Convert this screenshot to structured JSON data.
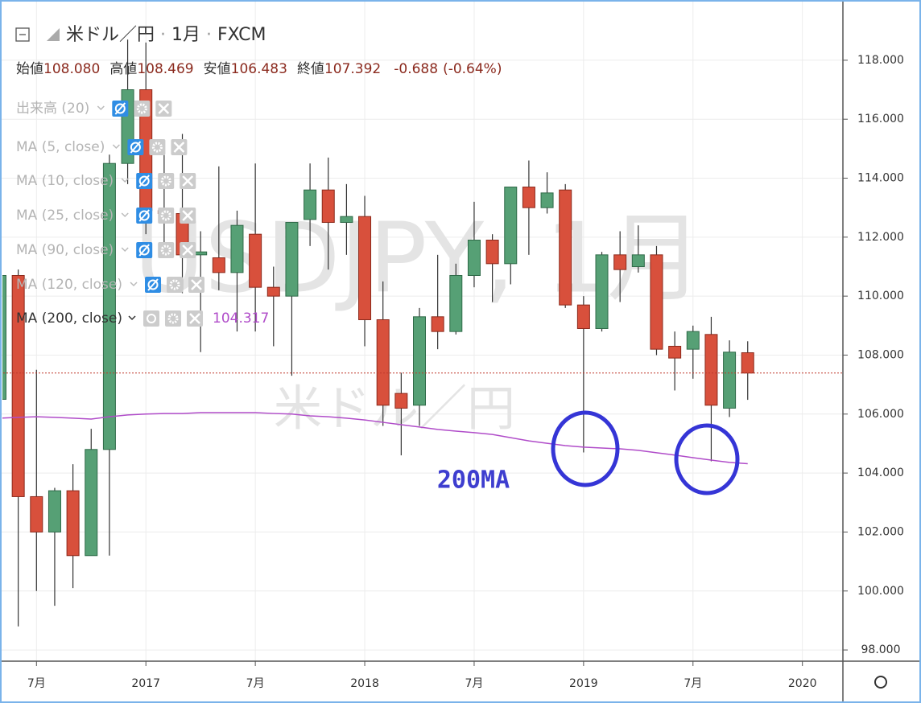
{
  "chart_data": {
    "type": "candlestick",
    "symbol": "米ドル／円",
    "interval": "1月",
    "exchange": "FXCM",
    "ohlc_legend": [
      {
        "label": "始値",
        "value": "108.080"
      },
      {
        "label": "高値",
        "value": "108.469"
      },
      {
        "label": "安値",
        "value": "106.483"
      },
      {
        "label": "終値",
        "value": "107.392"
      }
    ],
    "change": "-0.688",
    "change_pct": "(-0.64%)",
    "indicators": [
      "出来高 (20)",
      "MA (5, close)",
      "MA (10, close)",
      "MA (25, close)",
      "MA (90, close)",
      "MA (120, close)"
    ],
    "watermark": "USDJPY, 1月",
    "watermark_sub": "米ドル／円",
    "annotation": "200MA",
    "up_color": "#56a075",
    "down_color": "#d8503c",
    "x": [
      "2016-05",
      "2016-06",
      "2016-07",
      "2016-08",
      "2016-09",
      "2016-10",
      "2016-11",
      "2016-12",
      "2017-01",
      "2017-02",
      "2017-03",
      "2017-04",
      "2017-05",
      "2017-06",
      "2017-07",
      "2017-08",
      "2017-09",
      "2017-10",
      "2017-11",
      "2017-12",
      "2018-01",
      "2018-02",
      "2018-03",
      "2018-04",
      "2018-05",
      "2018-06",
      "2018-07",
      "2018-08",
      "2018-09",
      "2018-10",
      "2018-11",
      "2018-12",
      "2019-01",
      "2019-02",
      "2019-03",
      "2019-04",
      "2019-05",
      "2019-06",
      "2019-07",
      "2019-08",
      "2019-09",
      "2019-10"
    ],
    "open": [
      106.5,
      110.7,
      103.2,
      102.0,
      103.4,
      101.2,
      104.8,
      114.5,
      117.0,
      112.9,
      112.8,
      111.4,
      111.3,
      110.8,
      112.1,
      110.3,
      110.0,
      112.6,
      113.6,
      112.5,
      112.7,
      109.2,
      106.7,
      106.3,
      109.3,
      108.8,
      110.7,
      111.9,
      111.1,
      113.7,
      113.0,
      113.6,
      109.7,
      108.9,
      111.4,
      111.0,
      111.4,
      108.3,
      108.2,
      108.7,
      106.2,
      108.08
    ],
    "high": [
      111.4,
      110.9,
      107.5,
      103.5,
      104.3,
      105.5,
      114.8,
      118.7,
      118.6,
      115.0,
      115.5,
      112.2,
      114.4,
      112.9,
      114.5,
      111.0,
      112.5,
      114.5,
      114.7,
      113.8,
      113.4,
      110.5,
      107.4,
      109.6,
      111.4,
      111.1,
      113.2,
      112.1,
      113.7,
      114.6,
      114.2,
      113.8,
      110.0,
      111.5,
      112.2,
      112.4,
      111.7,
      108.8,
      109.0,
      109.3,
      108.5,
      108.469
    ],
    "low": [
      105.5,
      98.8,
      100.0,
      99.5,
      100.1,
      101.2,
      101.2,
      113.8,
      112.1,
      111.6,
      110.1,
      108.1,
      110.2,
      108.8,
      108.8,
      108.3,
      107.3,
      111.7,
      110.9,
      111.4,
      108.3,
      105.6,
      104.6,
      105.6,
      108.2,
      108.7,
      110.3,
      109.8,
      110.4,
      111.4,
      112.8,
      109.6,
      104.7,
      108.8,
      109.8,
      110.8,
      108.0,
      106.8,
      107.2,
      104.4,
      105.9,
      106.483
    ],
    "close": [
      110.7,
      103.2,
      102.0,
      103.4,
      101.2,
      104.8,
      114.5,
      117.0,
      112.9,
      112.8,
      111.4,
      111.5,
      110.8,
      112.4,
      110.3,
      110.0,
      112.5,
      113.6,
      112.5,
      112.7,
      109.2,
      106.3,
      106.2,
      109.3,
      108.8,
      110.7,
      111.9,
      111.1,
      113.7,
      113.0,
      113.5,
      109.7,
      108.9,
      111.4,
      110.9,
      111.4,
      108.2,
      107.9,
      108.8,
      106.3,
      108.1,
      107.392
    ],
    "ma": {
      "name": "MA (200, close)",
      "color": "#b04cc9",
      "values": [
        105.86,
        105.89,
        105.91,
        105.89,
        105.86,
        105.83,
        105.91,
        105.97,
        106.0,
        106.02,
        106.02,
        106.05,
        106.05,
        106.05,
        106.05,
        106.02,
        106.0,
        105.94,
        105.91,
        105.86,
        105.8,
        105.72,
        105.64,
        105.56,
        105.48,
        105.42,
        105.37,
        105.31,
        105.2,
        105.09,
        105.01,
        104.93,
        104.88,
        104.85,
        104.82,
        104.77,
        104.69,
        104.61,
        104.52,
        104.44,
        104.36,
        104.317
      ]
    },
    "price_line": {
      "value": 107.392,
      "color": "#c0392b"
    },
    "xlim": [
      "2016-05",
      "2020-03"
    ],
    "xticks": [
      {
        "value": "2016-07",
        "label": "7月"
      },
      {
        "value": "2017-01",
        "label": "2017"
      },
      {
        "value": "2017-07",
        "label": "7月"
      },
      {
        "value": "2018-01",
        "label": "2018"
      },
      {
        "value": "2018-07",
        "label": "7月"
      },
      {
        "value": "2019-01",
        "label": "2019"
      },
      {
        "value": "2019-07",
        "label": "7月"
      },
      {
        "value": "2020-01",
        "label": "2020"
      }
    ],
    "ylim": [
      97.62,
      119.77
    ],
    "yticks": [
      {
        "value": 98,
        "label": "98.000"
      },
      {
        "value": 100,
        "label": "100.000"
      },
      {
        "value": 102,
        "label": "102.000"
      },
      {
        "value": 104,
        "label": "104.000"
      },
      {
        "value": 106,
        "label": "106.000"
      },
      {
        "value": 108,
        "label": "108.000"
      },
      {
        "value": 110,
        "label": "110.000"
      },
      {
        "value": 112,
        "label": "112.000"
      },
      {
        "value": 114,
        "label": "114.000"
      },
      {
        "value": 116,
        "label": "116.000"
      },
      {
        "value": 118,
        "label": "118.000"
      }
    ],
    "grid": true
  }
}
